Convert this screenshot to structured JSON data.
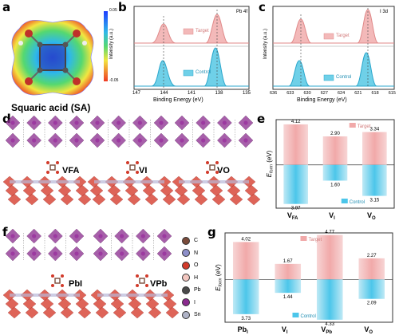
{
  "panels": {
    "a": {
      "letter": "a",
      "caption": "Squaric acid (SA)",
      "colorbar_max": "0.05",
      "colorbar_min": "-0.05"
    },
    "b": {
      "letter": "b",
      "tag": "Pb 4f",
      "xlabel": "Binding Energy (eV)",
      "ylabel": "Intensity (a.u.)",
      "xticks": [
        "147",
        "144",
        "141",
        "138",
        "135"
      ],
      "legend_top": "Target",
      "legend_bottom": "Control"
    },
    "c": {
      "letter": "c",
      "tag": "I 3d",
      "xlabel": "Binding Energy (eV)",
      "ylabel": "Intensity (a.u.)",
      "xticks": [
        "636",
        "633",
        "630",
        "627",
        "624",
        "621",
        "618",
        "615"
      ],
      "legend_top": "Target",
      "legend_bottom": "Control"
    },
    "d": {
      "letter": "d",
      "labels": [
        "VFA",
        "VI",
        "VO"
      ]
    },
    "e": {
      "letter": "e"
    },
    "f": {
      "letter": "f",
      "labels": [
        "PbI",
        "VPb"
      ],
      "legend": [
        {
          "sym": "C",
          "color": "#7a4b3a"
        },
        {
          "sym": "N",
          "color": "#8d8fc9"
        },
        {
          "sym": "O",
          "color": "#d23a2a"
        },
        {
          "sym": "H",
          "color": "#f3c7c0"
        },
        {
          "sym": "Pb",
          "color": "#4a4a4a"
        },
        {
          "sym": "I",
          "color": "#8a2a8e"
        },
        {
          "sym": "Sn",
          "color": "#b0b4c8"
        }
      ]
    },
    "g": {
      "letter": "g"
    }
  },
  "chart_data": [
    {
      "type": "bar",
      "id": "e",
      "categories": [
        "VFA",
        "VI",
        "VO"
      ],
      "series": [
        {
          "name": "Target",
          "values": [
            4.12,
            2.9,
            3.34
          ]
        },
        {
          "name": "Control",
          "values": [
            -3.97,
            -1.6,
            -3.15
          ]
        }
      ],
      "value_labels_target": [
        "4.12",
        "2.90",
        "3.34"
      ],
      "value_labels_control": [
        "3.97",
        "1.60",
        "3.15"
      ],
      "ylabel": "Eform (eV)",
      "ylim": [
        -4.4,
        4.6
      ]
    },
    {
      "type": "bar",
      "id": "g",
      "categories": [
        "PbI",
        "VI",
        "VPb",
        "VO"
      ],
      "series": [
        {
          "name": "Target",
          "values": [
            4.02,
            1.67,
            4.77,
            2.27
          ]
        },
        {
          "name": "Control",
          "values": [
            -3.73,
            -1.44,
            -4.33,
            -2.09
          ]
        }
      ],
      "value_labels_target": [
        "4.02",
        "1.67",
        "4.77",
        "2.27"
      ],
      "value_labels_control": [
        "3.73",
        "1.44",
        "4.33",
        "2.09"
      ],
      "ylabel": "Eform (eV)",
      "ylim": [
        -4.6,
        5.0
      ]
    }
  ]
}
